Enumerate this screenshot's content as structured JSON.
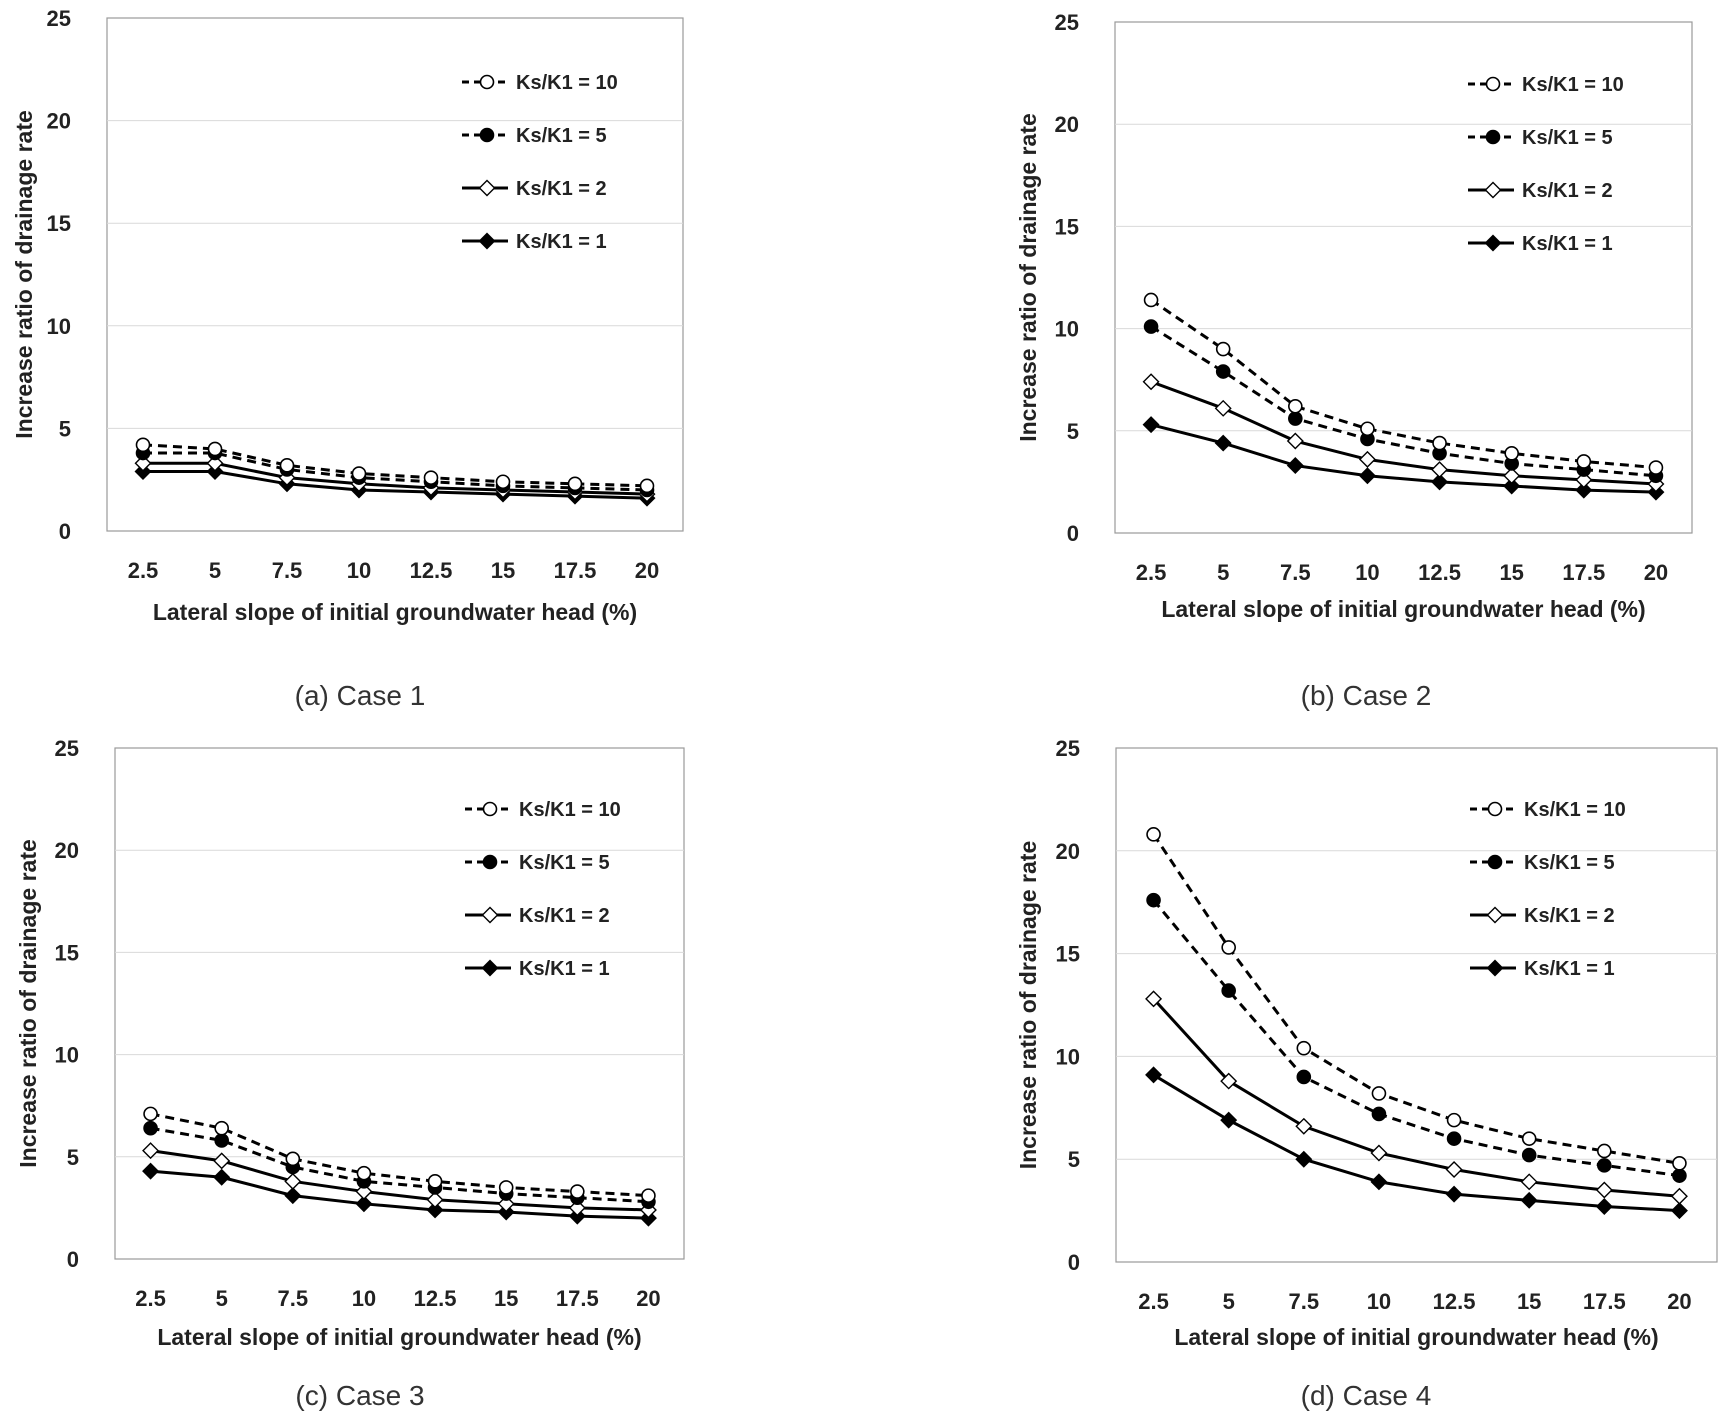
{
  "figure": {
    "captions": [
      "(a) Case 1",
      "(b) Case 2",
      "(c) Case 3",
      "(d) Case 4"
    ]
  },
  "chart_data": [
    {
      "type": "line",
      "caption": "(a) Case 1",
      "xlabel": "Lateral slope of initial groundwater head (%)",
      "ylabel": "Increase ratio of drainage rate",
      "categories": [
        "2.5",
        "5",
        "7.5",
        "10",
        "12.5",
        "15",
        "17.5",
        "20"
      ],
      "ylim": [
        0,
        25
      ],
      "yticks": [
        0,
        5,
        10,
        15,
        20,
        25
      ],
      "grid": "horizontal",
      "legend": "top-right",
      "series": [
        {
          "name": "Ks/K1 = 10",
          "line": "dashed",
          "marker": "open-circle",
          "values": [
            4.2,
            4.0,
            3.2,
            2.8,
            2.6,
            2.4,
            2.3,
            2.2
          ]
        },
        {
          "name": "Ks/K1 = 5",
          "line": "dashed",
          "marker": "filled-circle",
          "values": [
            3.8,
            3.8,
            3.0,
            2.6,
            2.4,
            2.2,
            2.1,
            2.0
          ]
        },
        {
          "name": "Ks/K1 = 2",
          "line": "solid",
          "marker": "open-diamond",
          "values": [
            3.3,
            3.3,
            2.6,
            2.3,
            2.1,
            2.0,
            1.9,
            1.8
          ]
        },
        {
          "name": "Ks/K1 = 1",
          "line": "solid",
          "marker": "filled-diamond",
          "values": [
            2.9,
            2.9,
            2.3,
            2.0,
            1.9,
            1.8,
            1.7,
            1.6
          ]
        }
      ]
    },
    {
      "type": "line",
      "caption": "(b) Case 2",
      "xlabel": "Lateral slope of initial groundwater head (%)",
      "ylabel": "Increase ratio of drainage rate",
      "categories": [
        "2.5",
        "5",
        "7.5",
        "10",
        "12.5",
        "15",
        "17.5",
        "20"
      ],
      "ylim": [
        0,
        25
      ],
      "yticks": [
        0,
        5,
        10,
        15,
        20,
        25
      ],
      "grid": "horizontal",
      "legend": "top-right",
      "series": [
        {
          "name": "Ks/K1 = 10",
          "line": "dashed",
          "marker": "open-circle",
          "values": [
            11.4,
            9.0,
            6.2,
            5.1,
            4.4,
            3.9,
            3.5,
            3.2
          ]
        },
        {
          "name": "Ks/K1 = 5",
          "line": "dashed",
          "marker": "filled-circle",
          "values": [
            10.1,
            7.9,
            5.6,
            4.6,
            3.9,
            3.4,
            3.1,
            2.8
          ]
        },
        {
          "name": "Ks/K1 = 2",
          "line": "solid",
          "marker": "open-diamond",
          "values": [
            7.4,
            6.1,
            4.5,
            3.6,
            3.1,
            2.8,
            2.6,
            2.4
          ]
        },
        {
          "name": "Ks/K1 = 1",
          "line": "solid",
          "marker": "filled-diamond",
          "values": [
            5.3,
            4.4,
            3.3,
            2.8,
            2.5,
            2.3,
            2.1,
            2.0
          ]
        }
      ]
    },
    {
      "type": "line",
      "caption": "(c) Case 3",
      "xlabel": "Lateral slope of initial groundwater head (%)",
      "ylabel": "Increase ratio of drainage rate",
      "categories": [
        "2.5",
        "5",
        "7.5",
        "10",
        "12.5",
        "15",
        "17.5",
        "20"
      ],
      "ylim": [
        0,
        25
      ],
      "yticks": [
        0,
        5,
        10,
        15,
        20,
        25
      ],
      "grid": "horizontal",
      "legend": "top-right",
      "series": [
        {
          "name": "Ks/K1 = 10",
          "line": "dashed",
          "marker": "open-circle",
          "values": [
            7.1,
            6.4,
            4.9,
            4.2,
            3.8,
            3.5,
            3.3,
            3.1
          ]
        },
        {
          "name": "Ks/K1 = 5",
          "line": "dashed",
          "marker": "filled-circle",
          "values": [
            6.4,
            5.8,
            4.5,
            3.8,
            3.5,
            3.2,
            3.0,
            2.8
          ]
        },
        {
          "name": "Ks/K1 = 2",
          "line": "solid",
          "marker": "open-diamond",
          "values": [
            5.3,
            4.8,
            3.8,
            3.3,
            2.9,
            2.7,
            2.5,
            2.4
          ]
        },
        {
          "name": "Ks/K1 = 1",
          "line": "solid",
          "marker": "filled-diamond",
          "values": [
            4.3,
            4.0,
            3.1,
            2.7,
            2.4,
            2.3,
            2.1,
            2.0
          ]
        }
      ]
    },
    {
      "type": "line",
      "caption": "(d) Case 4",
      "xlabel": "Lateral slope of initial groundwater head (%)",
      "ylabel": "Increase ratio of drainage rate",
      "categories": [
        "2.5",
        "5",
        "7.5",
        "10",
        "12.5",
        "15",
        "17.5",
        "20"
      ],
      "ylim": [
        0,
        25
      ],
      "yticks": [
        0,
        5,
        10,
        15,
        20,
        25
      ],
      "grid": "horizontal",
      "legend": "top-right",
      "series": [
        {
          "name": "Ks/K1 = 10",
          "line": "dashed",
          "marker": "open-circle",
          "values": [
            20.8,
            15.3,
            10.4,
            8.2,
            6.9,
            6.0,
            5.4,
            4.8
          ]
        },
        {
          "name": "Ks/K1 = 5",
          "line": "dashed",
          "marker": "filled-circle",
          "values": [
            17.6,
            13.2,
            9.0,
            7.2,
            6.0,
            5.2,
            4.7,
            4.2
          ]
        },
        {
          "name": "Ks/K1 = 2",
          "line": "solid",
          "marker": "open-diamond",
          "values": [
            12.8,
            8.8,
            6.6,
            5.3,
            4.5,
            3.9,
            3.5,
            3.2
          ]
        },
        {
          "name": "Ks/K1 = 1",
          "line": "solid",
          "marker": "filled-diamond",
          "values": [
            9.1,
            6.9,
            5.0,
            3.9,
            3.3,
            3.0,
            2.7,
            2.5
          ]
        }
      ]
    }
  ]
}
